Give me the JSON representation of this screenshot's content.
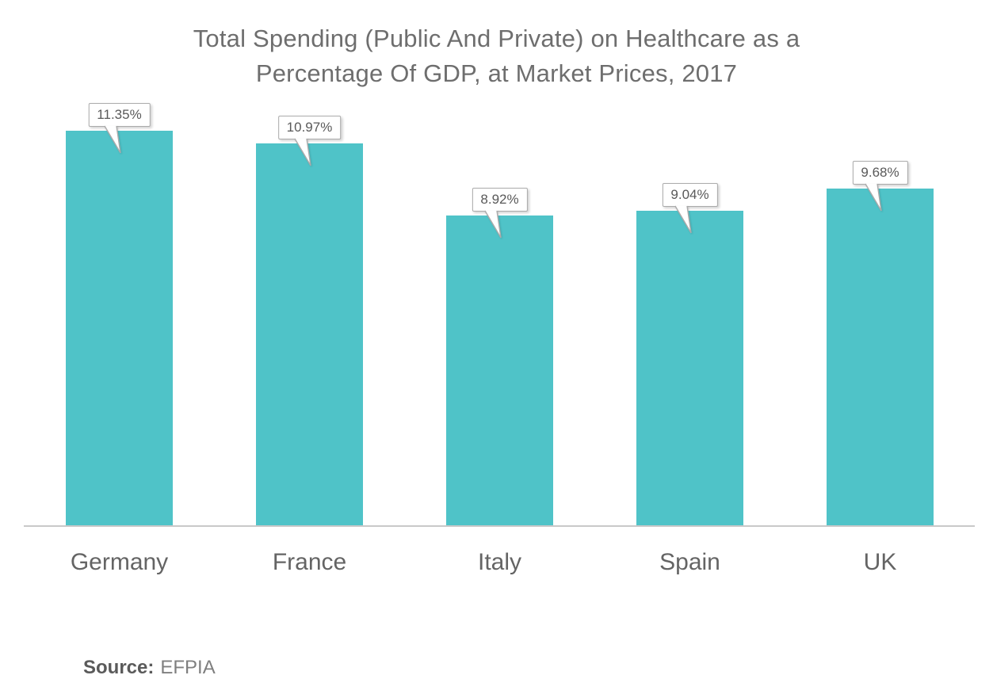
{
  "title_lines": [
    "Total Spending (Public And Private) on Healthcare as a",
    "Percentage Of GDP, at Market Prices, 2017"
  ],
  "source": {
    "label": "Source:",
    "value": "EFPIA"
  },
  "colors": {
    "bar": "#4fc3c8",
    "axis_line": "#c9c9c9",
    "title_text": "#6e6e6e",
    "category_text": "#646464",
    "callout_border": "#ababab",
    "callout_text": "#595959"
  },
  "chart_data": {
    "type": "bar",
    "title": "Total Spending (Public And Private) on Healthcare as a Percentage Of GDP, at Market Prices, 2017",
    "categories": [
      "Germany",
      "France",
      "Italy",
      "Spain",
      "UK"
    ],
    "values": [
      11.35,
      10.97,
      8.92,
      9.04,
      9.68
    ],
    "data_labels": [
      "11.35%",
      "10.97%",
      "8.92%",
      "9.04%",
      "9.68%"
    ],
    "xlabel": "",
    "ylabel": "",
    "ylim": [
      0,
      12
    ],
    "unit": "% of GDP",
    "grid": false,
    "legend": false,
    "source": "EFPIA"
  }
}
